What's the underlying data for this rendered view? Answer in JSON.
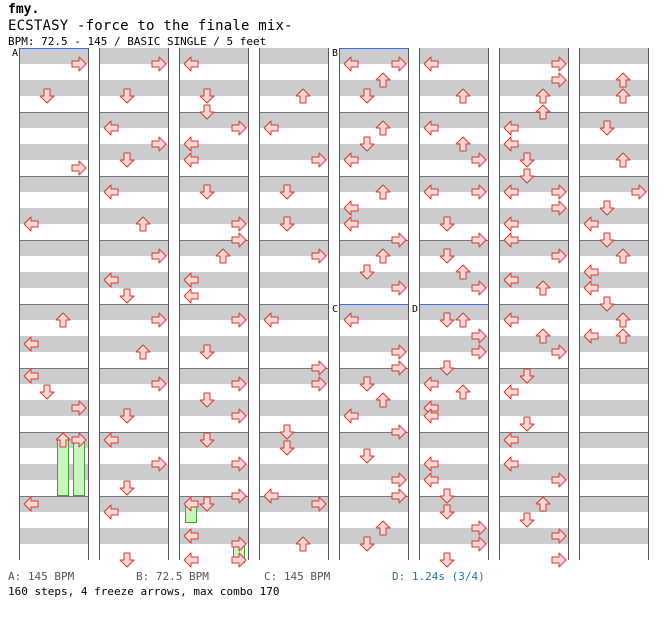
{
  "header": {
    "logo": "fmy.",
    "title": "ECSTASY -force to the finale mix-",
    "meta": "BPM: 72.5 - 145 / BASIC SINGLE / 5 feet"
  },
  "sections": {
    "a": "A",
    "b": "B",
    "c": "C",
    "d": "D"
  },
  "footer": {
    "bpm_a": "A: 145 BPM",
    "bpm_b": "B: 72.5 BPM",
    "bpm_c": "C: 145 BPM",
    "bpm_d": "D: 1.24s (3/4)",
    "stats": "160 steps, 4 freeze arrows, max combo 170"
  },
  "colors": {
    "arrow_fill": "#ffd6d6",
    "arrow_stroke": "#d23a3a",
    "freeze_fill": "#c8f5c0",
    "band": "#cccccc",
    "accent_blue": "#3a6fd6",
    "stop_text": "#1f6fb6"
  },
  "icons": {
    "left": "left-arrow-icon",
    "down": "down-arrow-icon",
    "up": "up-arrow-icon",
    "right": "right-arrow-icon"
  },
  "columns": [
    {
      "notes": [
        [
          "right",
          0.5
        ],
        [
          "down",
          2.5
        ],
        [
          "right",
          7
        ],
        [
          "left",
          10.5
        ],
        [
          "up",
          16.5
        ],
        [
          "left",
          18
        ],
        [
          "left",
          20
        ],
        [
          "down",
          21
        ],
        [
          "right",
          22
        ],
        [
          "up",
          24
        ],
        [
          "right",
          24
        ],
        [
          "left",
          28
        ]
      ]
    },
    {
      "notes": [
        [
          "right",
          0.5
        ],
        [
          "down",
          2.5
        ],
        [
          "left",
          4.5
        ],
        [
          "right",
          5.5
        ],
        [
          "down",
          6.5
        ],
        [
          "left",
          8.5
        ],
        [
          "up",
          10.5
        ],
        [
          "right",
          12.5
        ],
        [
          "left",
          14
        ],
        [
          "down",
          15
        ],
        [
          "right",
          16.5
        ],
        [
          "up",
          18.5
        ],
        [
          "right",
          20.5
        ],
        [
          "down",
          22.5
        ],
        [
          "left",
          24
        ],
        [
          "right",
          25.5
        ],
        [
          "down",
          27
        ],
        [
          "left",
          28.5
        ],
        [
          "down",
          31.5
        ]
      ]
    },
    {
      "notes": [
        [
          "left",
          0.5
        ],
        [
          "down",
          2.5
        ],
        [
          "down",
          3.5
        ],
        [
          "right",
          4.5
        ],
        [
          "left",
          5.5
        ],
        [
          "left",
          6.5
        ],
        [
          "down",
          8.5
        ],
        [
          "right",
          10.5
        ],
        [
          "right",
          11.5
        ],
        [
          "up",
          12.5
        ],
        [
          "left",
          14
        ],
        [
          "left",
          15
        ],
        [
          "right",
          16.5
        ],
        [
          "down",
          18.5
        ],
        [
          "right",
          20.5
        ],
        [
          "down",
          21.5
        ],
        [
          "right",
          22.5
        ],
        [
          "down",
          24
        ],
        [
          "right",
          25.5
        ],
        [
          "right",
          27.5
        ],
        [
          "left",
          28
        ],
        [
          "down",
          28
        ],
        [
          "left",
          30
        ],
        [
          "left",
          31.5
        ],
        [
          "right",
          30.5
        ],
        [
          "right",
          31.5
        ]
      ]
    },
    {
      "notes": [
        [
          "up",
          2.5
        ],
        [
          "left",
          4.5
        ],
        [
          "right",
          6.5
        ],
        [
          "down",
          8.5
        ],
        [
          "down",
          10.5
        ],
        [
          "right",
          12.5
        ],
        [
          "left",
          16.5
        ],
        [
          "right",
          19.5
        ],
        [
          "right",
          20.5
        ],
        [
          "down",
          23.5
        ],
        [
          "down",
          24.5
        ],
        [
          "left",
          27.5
        ],
        [
          "right",
          28
        ],
        [
          "up",
          30.5
        ]
      ]
    },
    {
      "notes": [
        [
          "left",
          0.5
        ],
        [
          "right",
          0.5
        ],
        [
          "up",
          1.5
        ],
        [
          "down",
          2.5
        ],
        [
          "up",
          4.5
        ],
        [
          "down",
          5.5
        ],
        [
          "left",
          6.5
        ],
        [
          "up",
          8.5
        ],
        [
          "left",
          9.5
        ],
        [
          "left",
          10.5
        ],
        [
          "right",
          11.5
        ],
        [
          "up",
          12.5
        ],
        [
          "down",
          13.5
        ],
        [
          "right",
          14.5
        ],
        [
          "left",
          16.5
        ],
        [
          "right",
          18.5
        ],
        [
          "right",
          19.5
        ],
        [
          "down",
          20.5
        ],
        [
          "up",
          21.5
        ],
        [
          "left",
          22.5
        ],
        [
          "right",
          23.5
        ],
        [
          "down",
          25
        ],
        [
          "right",
          26.5
        ],
        [
          "right",
          27.5
        ],
        [
          "up",
          29.5
        ],
        [
          "down",
          30.5
        ]
      ]
    },
    {
      "notes": [
        [
          "left",
          0.5
        ],
        [
          "up",
          2.5
        ],
        [
          "left",
          4.5
        ],
        [
          "up",
          5.5
        ],
        [
          "right",
          6.5
        ],
        [
          "left",
          8.5
        ],
        [
          "right",
          8.5
        ],
        [
          "down",
          10.5
        ],
        [
          "right",
          11.5
        ],
        [
          "down",
          12.5
        ],
        [
          "up",
          13.5
        ],
        [
          "right",
          14.5
        ],
        [
          "down",
          16.5
        ],
        [
          "up",
          16.5
        ],
        [
          "right",
          17.5
        ],
        [
          "right",
          18.5
        ],
        [
          "down",
          19.5
        ],
        [
          "left",
          20.5
        ],
        [
          "up",
          21
        ],
        [
          "left",
          22
        ],
        [
          "left",
          22.5
        ],
        [
          "left",
          25.5
        ],
        [
          "left",
          26.5
        ],
        [
          "down",
          27.5
        ],
        [
          "down",
          28.5
        ],
        [
          "right",
          29.5
        ],
        [
          "right",
          30.5
        ],
        [
          "down",
          31.5
        ]
      ]
    },
    {
      "notes": [
        [
          "right",
          0.5
        ],
        [
          "right",
          1.5
        ],
        [
          "up",
          2.5
        ],
        [
          "up",
          3.5
        ],
        [
          "left",
          4.5
        ],
        [
          "left",
          5.5
        ],
        [
          "down",
          6.5
        ],
        [
          "down",
          7.5
        ],
        [
          "left",
          8.5
        ],
        [
          "right",
          8.5
        ],
        [
          "right",
          9.5
        ],
        [
          "left",
          10.5
        ],
        [
          "left",
          11.5
        ],
        [
          "right",
          12.5
        ],
        [
          "left",
          14
        ],
        [
          "up",
          14.5
        ],
        [
          "left",
          16.5
        ],
        [
          "up",
          17.5
        ],
        [
          "right",
          18.5
        ],
        [
          "down",
          20
        ],
        [
          "left",
          21
        ],
        [
          "down",
          23
        ],
        [
          "left",
          24
        ],
        [
          "left",
          25.5
        ],
        [
          "right",
          26.5
        ],
        [
          "up",
          28
        ],
        [
          "down",
          29
        ],
        [
          "right",
          30
        ],
        [
          "right",
          31.5
        ]
      ]
    },
    {
      "notes": [
        [
          "up",
          1.5
        ],
        [
          "up",
          2.5
        ],
        [
          "down",
          4.5
        ],
        [
          "up",
          6.5
        ],
        [
          "right",
          8.5
        ],
        [
          "down",
          9.5
        ],
        [
          "left",
          10.5
        ],
        [
          "down",
          11.5
        ],
        [
          "up",
          12.5
        ],
        [
          "left",
          13.5
        ],
        [
          "left",
          14.5
        ],
        [
          "down",
          15.5
        ],
        [
          "up",
          16.5
        ],
        [
          "left",
          17.5
        ],
        [
          "up",
          17.5
        ]
      ]
    }
  ],
  "freezes": [
    {
      "col": 0,
      "lane": 2,
      "start": 24,
      "end": 27.6
    },
    {
      "col": 0,
      "lane": 3,
      "start": 24,
      "end": 27.6
    },
    {
      "col": 2,
      "lane": 0,
      "start": 28,
      "end": 29.3
    },
    {
      "col": 2,
      "lane": 3,
      "start": 30.5,
      "end": 31.8
    }
  ]
}
